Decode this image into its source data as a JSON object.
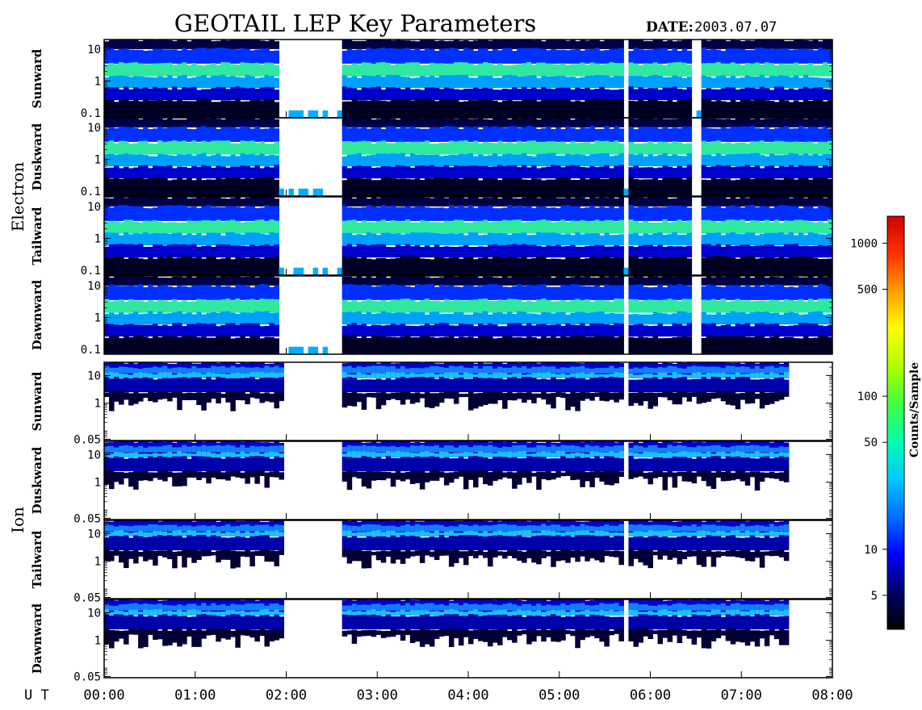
{
  "title": "GEOTAIL LEP Key Parameters",
  "date_label": "DATE:",
  "date_value": "2003.07.07",
  "x_axis_label": "U T",
  "colorbar": {
    "label": "Counts/Sample",
    "scale": "log",
    "range": [
      3,
      1500
    ],
    "ticks": [
      {
        "value": 5,
        "label": "5"
      },
      {
        "value": 10,
        "label": "10"
      },
      {
        "value": 50,
        "label": "50"
      },
      {
        "value": 100,
        "label": "100"
      },
      {
        "value": 500,
        "label": "500"
      },
      {
        "value": 1000,
        "label": "1000"
      }
    ],
    "colormap": [
      "#000000",
      "#000066",
      "#0000ff",
      "#0070ff",
      "#00c8ff",
      "#00ffb0",
      "#40ff40",
      "#b0ff00",
      "#ffff00",
      "#ffa000",
      "#ff3000",
      "#d00000"
    ]
  },
  "groups": [
    {
      "label": "Electron",
      "panels": [
        "Sunward",
        "Duskward",
        "Tailward",
        "Dawnward"
      ]
    },
    {
      "label": "Ion",
      "panels": [
        "Sunward",
        "Duskward",
        "Tailward",
        "Dawnward"
      ]
    }
  ],
  "chart_data": {
    "type": "heatmap",
    "title": "GEOTAIL LEP Key Parameters",
    "date": "2003.07.07",
    "x": {
      "label": "U T",
      "range_hours": [
        0,
        8
      ],
      "tick_labels": [
        "00:00",
        "01:00",
        "02:00",
        "03:00",
        "04:00",
        "05:00",
        "06:00",
        "07:00",
        "08:00"
      ]
    },
    "panels": [
      {
        "species": "Electron",
        "direction": "Sunward",
        "y_scale": "log",
        "y_range": [
          0.07,
          20
        ],
        "y_tick_labels": [
          "10",
          "1",
          "0.1"
        ]
      },
      {
        "species": "Electron",
        "direction": "Duskward",
        "y_scale": "log",
        "y_range": [
          0.07,
          20
        ],
        "y_tick_labels": [
          "10",
          "1",
          "0.1"
        ]
      },
      {
        "species": "Electron",
        "direction": "Tailward",
        "y_scale": "log",
        "y_range": [
          0.07,
          20
        ],
        "y_tick_labels": [
          "10",
          "1",
          "0.1"
        ]
      },
      {
        "species": "Electron",
        "direction": "Dawnward",
        "y_scale": "log",
        "y_range": [
          0.07,
          20
        ],
        "y_tick_labels": [
          "10",
          "1",
          "0.1"
        ]
      },
      {
        "species": "Ion",
        "direction": "Sunward",
        "y_scale": "log",
        "y_range": [
          0.045,
          30
        ],
        "y_tick_labels": [
          "10",
          "1",
          "0.05"
        ]
      },
      {
        "species": "Ion",
        "direction": "Duskward",
        "y_scale": "log",
        "y_range": [
          0.045,
          30
        ],
        "y_tick_labels": [
          "10",
          "1",
          "0.05"
        ]
      },
      {
        "species": "Ion",
        "direction": "Tailward",
        "y_scale": "log",
        "y_range": [
          0.045,
          30
        ],
        "y_tick_labels": [
          "10",
          "1",
          "0.05"
        ]
      },
      {
        "species": "Ion",
        "direction": "Dawnward",
        "y_scale": "log",
        "y_range": [
          0.045,
          30
        ],
        "y_tick_labels": [
          "10",
          "1",
          "0.05"
        ]
      }
    ],
    "electron_activity_hours": [
      [
        0,
        1.9
      ],
      [
        2.6,
        5.7
      ],
      [
        5.77,
        6.43
      ],
      [
        6.55,
        8.0
      ]
    ],
    "ion_activity_hours": [
      [
        0,
        1.95
      ],
      [
        2.6,
        5.7
      ],
      [
        5.77,
        7.5
      ]
    ]
  }
}
